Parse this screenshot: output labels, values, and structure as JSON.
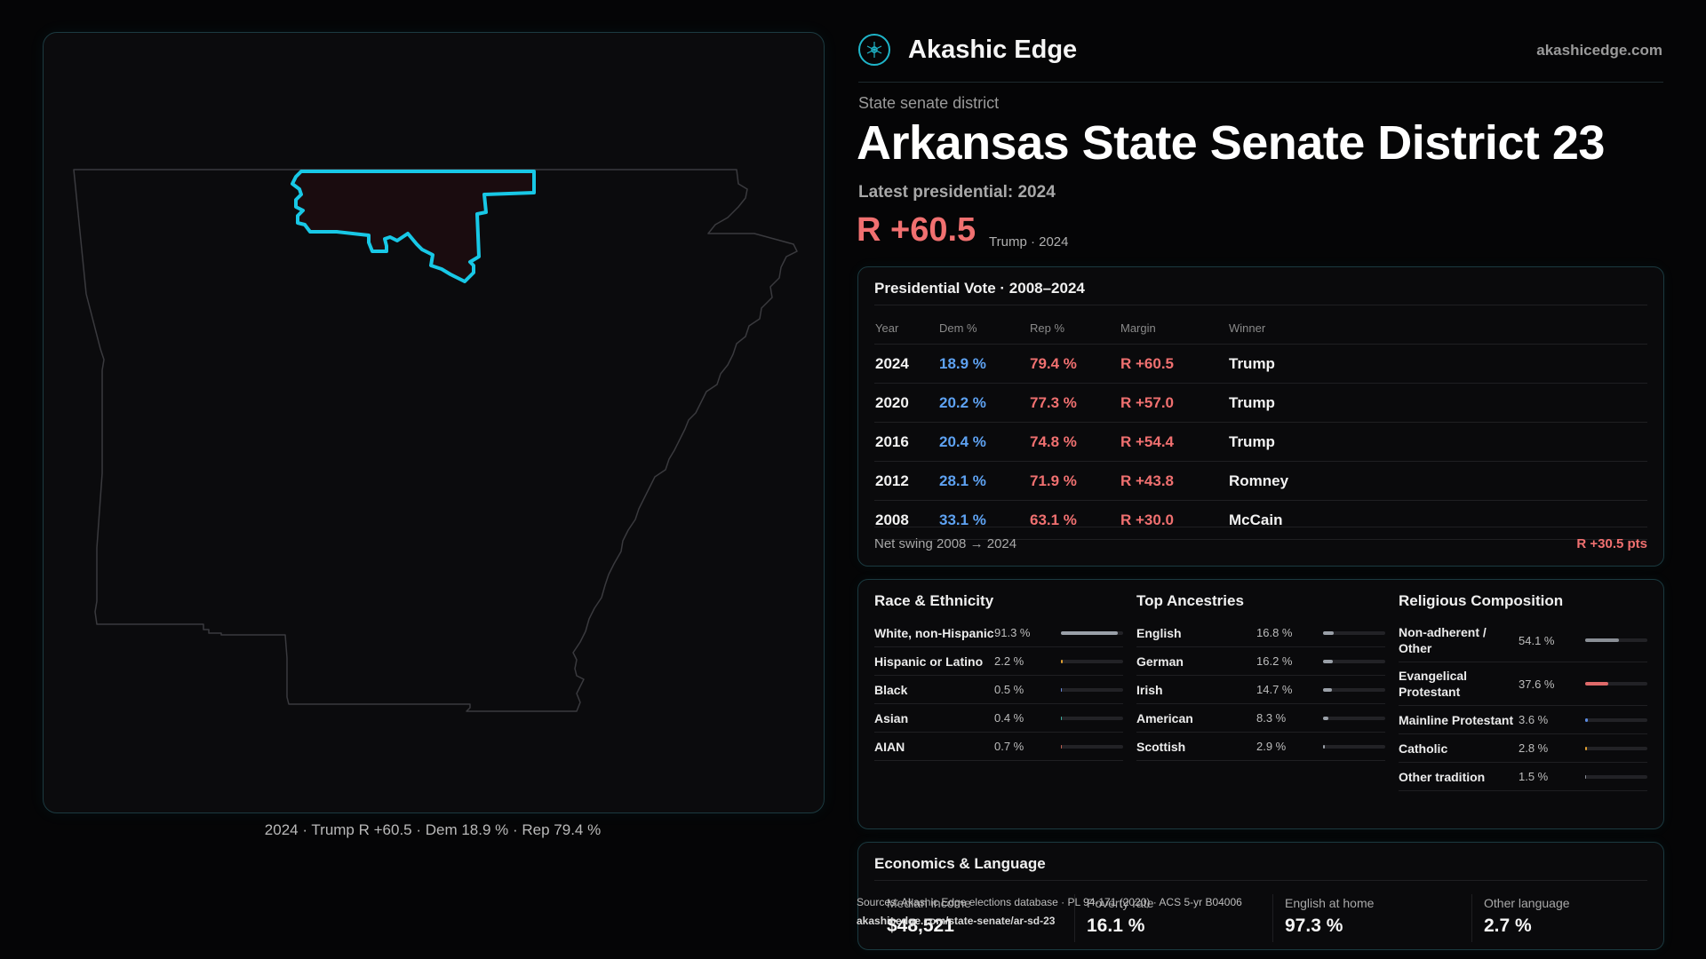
{
  "brand": {
    "name": "Akashic Edge",
    "url": "akashicedge.com"
  },
  "district": {
    "kind": "State senate district",
    "title": "Arkansas State Senate District 23",
    "latest": "Latest presidential: 2024",
    "margin": "R +60.5",
    "margin_sub": "Trump · 2024"
  },
  "map": {
    "caption": "2024 · Trump R +60.5 · Dem 18.9 % · Rep 79.4 %",
    "highlight_color": "#18c8e6"
  },
  "presidential": {
    "title": "Presidential Vote · 2008–2024",
    "headers": [
      "Year",
      "Dem %",
      "Rep %",
      "Margin",
      "Winner"
    ],
    "rows": [
      {
        "year": "2024",
        "dem": "18.9 %",
        "rep": "79.4 %",
        "margin": "R +60.5",
        "winner": "Trump"
      },
      {
        "year": "2020",
        "dem": "20.2 %",
        "rep": "77.3 %",
        "margin": "R +57.0",
        "winner": "Trump"
      },
      {
        "year": "2016",
        "dem": "20.4 %",
        "rep": "74.8 %",
        "margin": "R +54.4",
        "winner": "Trump"
      },
      {
        "year": "2012",
        "dem": "28.1 %",
        "rep": "71.9 %",
        "margin": "R +43.8",
        "winner": "Romney"
      },
      {
        "year": "2008",
        "dem": "33.1 %",
        "rep": "63.1 %",
        "margin": "R +30.0",
        "winner": "McCain"
      }
    ],
    "net_swing_label": "Net swing 2008 → 2024",
    "net_swing_value": "R +30.5 pts"
  },
  "race": {
    "title": "Race & Ethnicity",
    "items": [
      {
        "label": "White, non-Hispanic",
        "value": "91.3 %",
        "pct": 91.3,
        "color": "#9aa0a8"
      },
      {
        "label": "Hispanic or Latino",
        "value": "2.2 %",
        "pct": 2.2,
        "color": "#e0a030"
      },
      {
        "label": "Black",
        "value": "0.5 %",
        "pct": 0.5,
        "color": "#6a8ad8"
      },
      {
        "label": "Asian",
        "value": "0.4 %",
        "pct": 0.4,
        "color": "#40b0a0"
      },
      {
        "label": "AIAN",
        "value": "0.7 %",
        "pct": 0.7,
        "color": "#c06050"
      }
    ]
  },
  "ancestry": {
    "title": "Top Ancestries",
    "items": [
      {
        "label": "English",
        "value": "16.8 %",
        "pct": 16.8,
        "color": "#9aa0a8"
      },
      {
        "label": "German",
        "value": "16.2 %",
        "pct": 16.2,
        "color": "#9aa0a8"
      },
      {
        "label": "Irish",
        "value": "14.7 %",
        "pct": 14.7,
        "color": "#9aa0a8"
      },
      {
        "label": "American",
        "value": "8.3 %",
        "pct": 8.3,
        "color": "#9aa0a8"
      },
      {
        "label": "Scottish",
        "value": "2.9 %",
        "pct": 2.9,
        "color": "#9aa0a8"
      }
    ]
  },
  "religion": {
    "title": "Religious Composition",
    "items": [
      {
        "label": "Non-adherent / Other",
        "value": "54.1 %",
        "pct": 54.1,
        "color": "#8a8f96"
      },
      {
        "label": "Evangelical Protestant",
        "value": "37.6 %",
        "pct": 37.6,
        "color": "#e06a6a"
      },
      {
        "label": "Mainline Protestant",
        "value": "3.6 %",
        "pct": 3.6,
        "color": "#5a8ae0"
      },
      {
        "label": "Catholic",
        "value": "2.8 %",
        "pct": 2.8,
        "color": "#e0a030"
      },
      {
        "label": "Other tradition",
        "value": "1.5 %",
        "pct": 1.5,
        "color": "#8a8f96"
      }
    ]
  },
  "economics": {
    "title": "Economics & Language",
    "stats": [
      {
        "label": "Median income",
        "value": "$48,521"
      },
      {
        "label": "Poverty rate",
        "value": "16.1 %"
      },
      {
        "label": "English at home",
        "value": "97.3 %"
      },
      {
        "label": "Other language",
        "value": "2.7 %"
      }
    ]
  },
  "source": {
    "line": "Sources: Akashic Edge elections database · PL 94-171 (2020) · ACS 5-yr B04006",
    "url": "akashicedge.com/state-senate/ar-sd-23"
  }
}
